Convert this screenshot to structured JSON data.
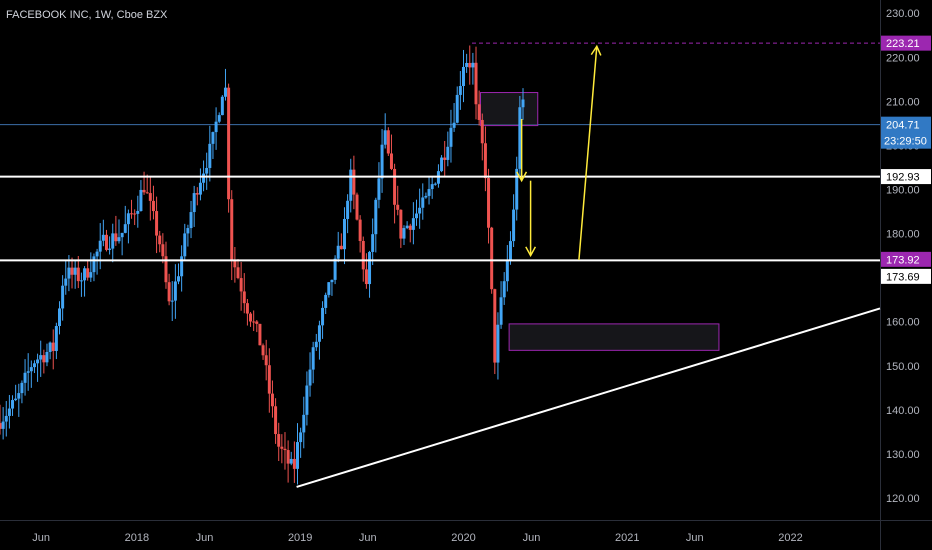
{
  "header": {
    "symbol_label": "FACEBOOK INC, 1W, Cboe BZX"
  },
  "chart_data": {
    "type": "candlestick",
    "y_axis": {
      "range": [
        115,
        233
      ],
      "ticks": [
        120,
        130,
        140,
        150,
        160,
        170,
        180,
        190,
        200,
        210,
        220,
        230
      ],
      "tick_labels": [
        "120.00",
        "130.00",
        "140.00",
        "150.00",
        "160.00",
        "170.00",
        "180.00",
        "190.00",
        "200.00",
        "210.00",
        "220.00",
        "230.00"
      ]
    },
    "x_axis": {
      "range": [
        "2017-03-01",
        "2022-07-20"
      ],
      "ticks": [
        {
          "date": "2017-06-01",
          "label": "Jun"
        },
        {
          "date": "2018-01-01",
          "label": "2018"
        },
        {
          "date": "2018-06-01",
          "label": "Jun"
        },
        {
          "date": "2019-01-01",
          "label": "2019"
        },
        {
          "date": "2019-06-01",
          "label": "Jun"
        },
        {
          "date": "2020-01-01",
          "label": "2020"
        },
        {
          "date": "2020-06-01",
          "label": "Jun"
        },
        {
          "date": "2021-01-01",
          "label": "2021"
        },
        {
          "date": "2021-06-01",
          "label": "Jun"
        },
        {
          "date": "2022-01-01",
          "label": "2022"
        }
      ]
    },
    "price_path": [
      [
        "2017-03-01",
        137
      ],
      [
        "2017-04-15",
        142
      ],
      [
        "2017-05-20",
        151
      ],
      [
        "2017-07-05",
        154
      ],
      [
        "2017-07-29",
        171
      ],
      [
        "2017-09-10",
        170
      ],
      [
        "2017-10-25",
        178
      ],
      [
        "2017-12-05",
        180
      ],
      [
        "2018-01-10",
        187
      ],
      [
        "2018-01-24",
        191
      ],
      [
        "2018-02-28",
        178
      ],
      [
        "2018-03-22",
        163
      ],
      [
        "2018-04-12",
        172
      ],
      [
        "2018-05-20",
        190
      ],
      [
        "2018-06-25",
        200
      ],
      [
        "2018-07-24",
        216
      ],
      [
        "2018-08-05",
        176
      ],
      [
        "2018-09-10",
        164
      ],
      [
        "2018-10-15",
        154
      ],
      [
        "2018-11-19",
        132
      ],
      [
        "2018-12-24",
        126
      ],
      [
        "2019-01-31",
        150
      ],
      [
        "2019-02-25",
        161
      ],
      [
        "2019-04-15",
        180
      ],
      [
        "2019-04-29",
        194
      ],
      [
        "2019-06-05",
        168
      ],
      [
        "2019-07-15",
        203
      ],
      [
        "2019-08-20",
        180
      ],
      [
        "2019-10-15",
        187
      ],
      [
        "2019-11-25",
        198
      ],
      [
        "2019-12-20",
        208
      ],
      [
        "2020-01-10",
        220
      ],
      [
        "2020-01-29",
        218
      ],
      [
        "2020-02-05",
        208
      ],
      [
        "2020-02-25",
        196
      ],
      [
        "2020-03-18",
        152
      ],
      [
        "2020-04-01",
        164
      ],
      [
        "2020-04-28",
        183
      ],
      [
        "2020-05-15",
        210
      ]
    ],
    "key_prices": [
      {
        "label": "223.21",
        "value": 223.21,
        "kind": "dashed-line"
      },
      {
        "label": "204.71",
        "value": 204.71,
        "kind": "last-price"
      },
      {
        "label": "23:29:50",
        "kind": "countdown"
      },
      {
        "label": "192.93",
        "value": 192.93,
        "kind": "level"
      },
      {
        "label": "173.92",
        "value": 173.92,
        "kind": "level"
      },
      {
        "label": "173.69",
        "value": 173.69,
        "kind": "level"
      }
    ],
    "zones": [
      {
        "from": "2020-02-08",
        "to": "2020-06-15",
        "low": 204.5,
        "high": 212
      },
      {
        "from": "2020-04-12",
        "to": "2021-07-25",
        "low": 153.5,
        "high": 159.5
      }
    ],
    "trendline": {
      "from": [
        "2018-12-24",
        122.5
      ],
      "to": [
        "2022-07-20",
        163
      ]
    },
    "arrows": [
      {
        "from": [
          "2020-05-10",
          206
        ],
        "to": [
          "2020-05-10",
          192
        ]
      },
      {
        "from": [
          "2020-05-30",
          192
        ],
        "to": [
          "2020-05-30",
          175
        ]
      },
      {
        "from": [
          "2020-09-15",
          174
        ],
        "to": [
          "2020-10-25",
          222.5
        ]
      }
    ],
    "colors": {
      "up": "#42a5f5",
      "down": "#ef5350",
      "accent": "#9c27b0",
      "arrow": "#ffeb3b",
      "level": "#ffffff"
    }
  }
}
